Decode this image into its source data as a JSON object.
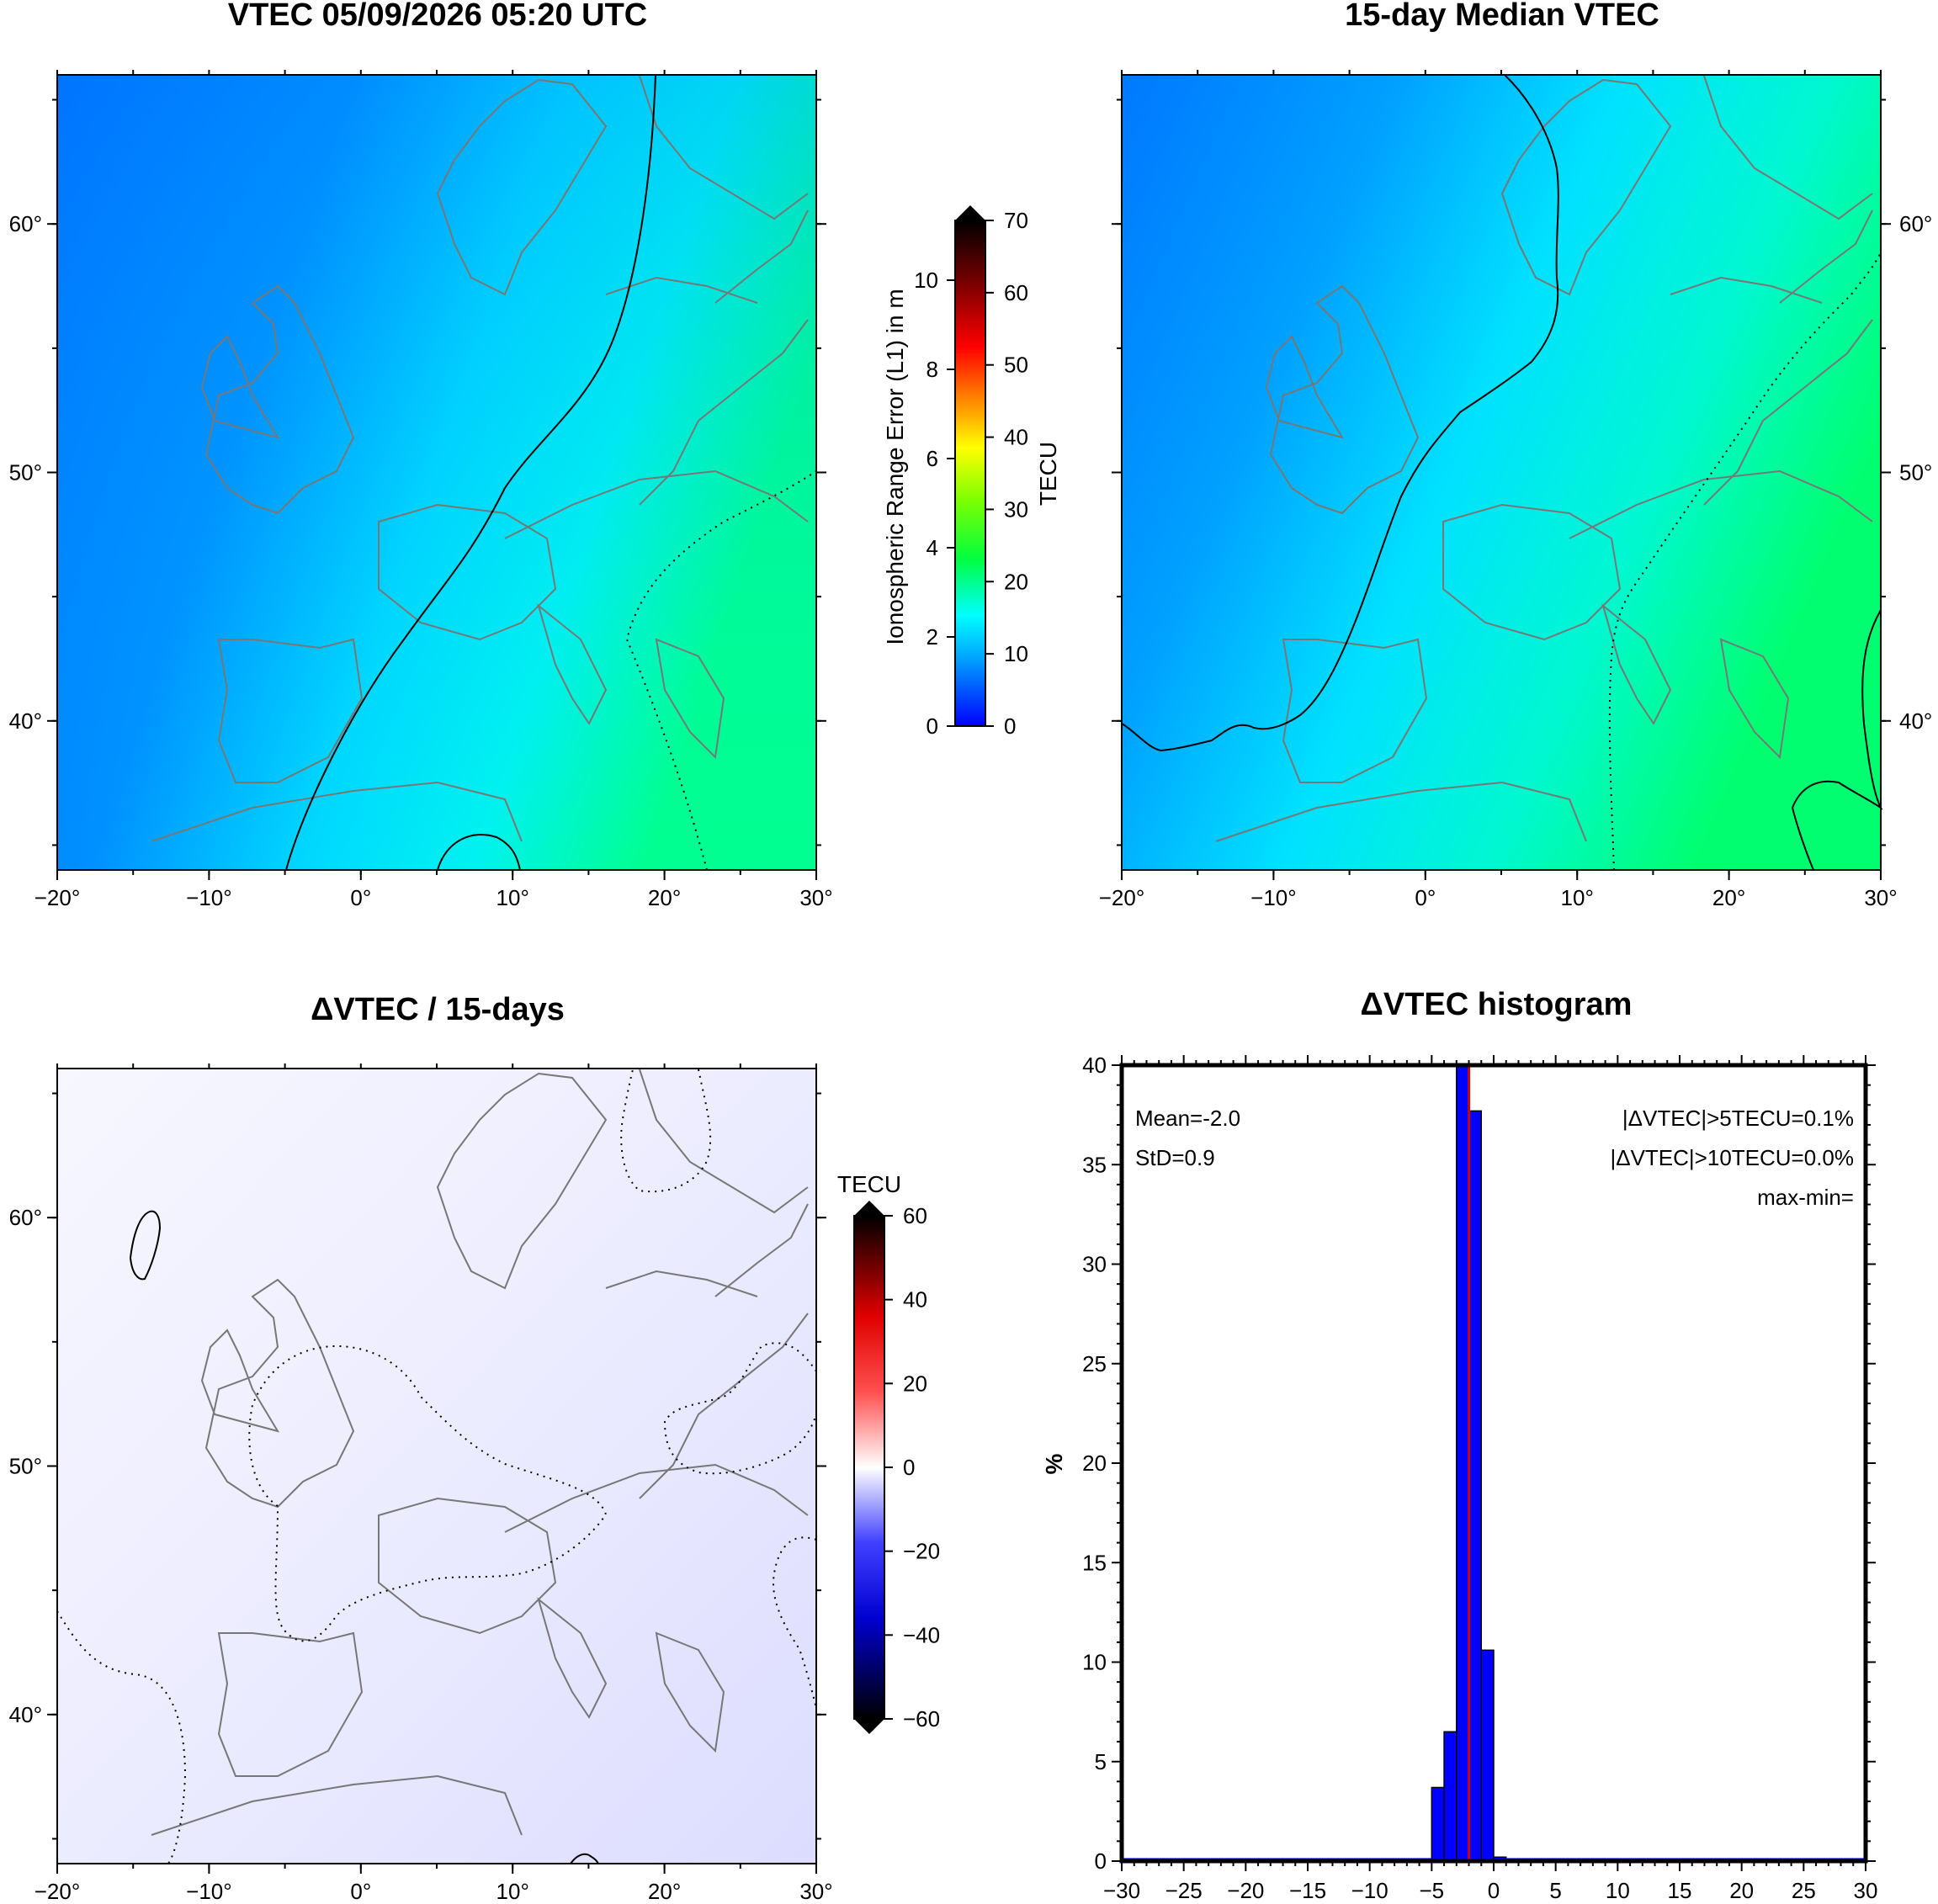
{
  "panels": {
    "vtec": {
      "title": "VTEC 05/09/2026 05:20 UTC"
    },
    "median": {
      "title": "15-day Median VTEC"
    },
    "delta": {
      "title": "ΔVTEC / 15-days"
    },
    "histogram": {
      "title": "ΔVTEC histogram"
    }
  },
  "map_axes": {
    "lon_ticks": [
      "−20°",
      "−10°",
      "0°",
      "10°",
      "20°",
      "30°"
    ],
    "lon_values": [
      -20,
      -10,
      0,
      10,
      20,
      30
    ],
    "lat_ticks": [
      "40°",
      "50°",
      "60°"
    ],
    "lat_values": [
      40,
      50,
      60
    ],
    "lon_range": [
      -20,
      30
    ],
    "lat_range": [
      34,
      66
    ]
  },
  "colorbar_vtec": {
    "label_left": "Ionospheric Range Error (L1) in m",
    "label_right": "TECU",
    "left_ticks": [
      "0",
      "2",
      "4",
      "6",
      "8",
      "10"
    ],
    "right_ticks": [
      "0",
      "10",
      "20",
      "30",
      "40",
      "50",
      "60",
      "70"
    ],
    "range": [
      0,
      70
    ]
  },
  "colorbar_delta": {
    "label": "TECU",
    "ticks": [
      "60",
      "40",
      "20",
      "0",
      "−20",
      "−40",
      "−60"
    ],
    "range": [
      -60,
      60
    ]
  },
  "stats": {
    "mean": "Mean=-2.0",
    "std": "StD=0.9",
    "gt5": "|ΔVTEC|>5TECU=0.1%",
    "gt10": "|ΔVTEC|>10TECU=0.0%",
    "maxmin": "max-min="
  },
  "chart_data": [
    {
      "type": "heatmap",
      "title": "VTEC 05/09/2026 05:20 UTC",
      "xlabel": "",
      "ylabel": "",
      "xlim": [
        -20,
        30
      ],
      "ylim": [
        34,
        66
      ],
      "units": "TECU",
      "colorbar_range": [
        0,
        70
      ]
    },
    {
      "type": "heatmap",
      "title": "15-day Median VTEC",
      "xlabel": "",
      "ylabel": "",
      "xlim": [
        -20,
        30
      ],
      "ylim": [
        34,
        66
      ],
      "units": "TECU",
      "colorbar_range": [
        0,
        70
      ]
    },
    {
      "type": "heatmap",
      "title": "ΔVTEC / 15-days",
      "xlabel": "",
      "ylabel": "",
      "xlim": [
        -20,
        30
      ],
      "ylim": [
        34,
        66
      ],
      "units": "TECU",
      "colorbar_range": [
        -60,
        60
      ]
    },
    {
      "type": "bar",
      "title": "ΔVTEC histogram",
      "xlabel": "",
      "ylabel": "%",
      "xlim": [
        -30,
        30
      ],
      "ylim": [
        0,
        40
      ],
      "x_ticks": [
        -30,
        -25,
        -20,
        -15,
        -10,
        -5,
        0,
        5,
        10,
        15,
        20,
        25,
        30
      ],
      "y_ticks": [
        0,
        5,
        10,
        15,
        20,
        25,
        30,
        35,
        40
      ],
      "bins": [
        {
          "from": -5,
          "to": -4,
          "value": 3.7
        },
        {
          "from": -4,
          "to": -3,
          "value": 6.5
        },
        {
          "from": -3,
          "to": -2,
          "value": 40
        },
        {
          "from": -2,
          "to": -1,
          "value": 37.7
        },
        {
          "from": -1,
          "to": 0,
          "value": 10.6
        },
        {
          "from": 0,
          "to": 1,
          "value": 0.2
        }
      ],
      "mean": -2.0
    }
  ]
}
